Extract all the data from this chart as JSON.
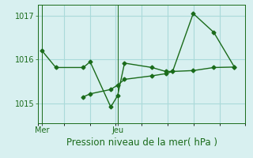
{
  "title": "Pression niveau de la mer( hPa )",
  "x_ticks_labels": [
    "Mer",
    "Jeu"
  ],
  "ylim": [
    1014.55,
    1017.25
  ],
  "yticks": [
    1015,
    1016,
    1017
  ],
  "grid_color": "#aadada",
  "bg_color": "#d8f0f0",
  "line_color": "#1a6b1a",
  "series1_x": [
    0,
    1,
    3,
    3.5,
    5,
    5.5,
    6,
    8,
    9,
    9.5,
    11,
    12.5,
    14
  ],
  "series1_y": [
    1016.2,
    1015.82,
    1015.82,
    1015.95,
    1014.92,
    1015.18,
    1015.92,
    1015.82,
    1015.73,
    1015.73,
    1017.05,
    1016.62,
    1015.83
  ],
  "series2_x": [
    3,
    3.5,
    5,
    5.5,
    6,
    8,
    9,
    9.5,
    11,
    12.5,
    14
  ],
  "series2_y": [
    1015.15,
    1015.22,
    1015.32,
    1015.42,
    1015.55,
    1015.63,
    1015.68,
    1015.73,
    1015.75,
    1015.82,
    1015.83
  ],
  "xlim": [
    -0.3,
    14.8
  ],
  "mer_x": 0,
  "jeu_x": 5.5,
  "marker": "D",
  "markersize": 2.5,
  "linewidth": 1.0,
  "title_fontsize": 8.5,
  "tick_fontsize": 7.0,
  "n_xgrid": 8
}
